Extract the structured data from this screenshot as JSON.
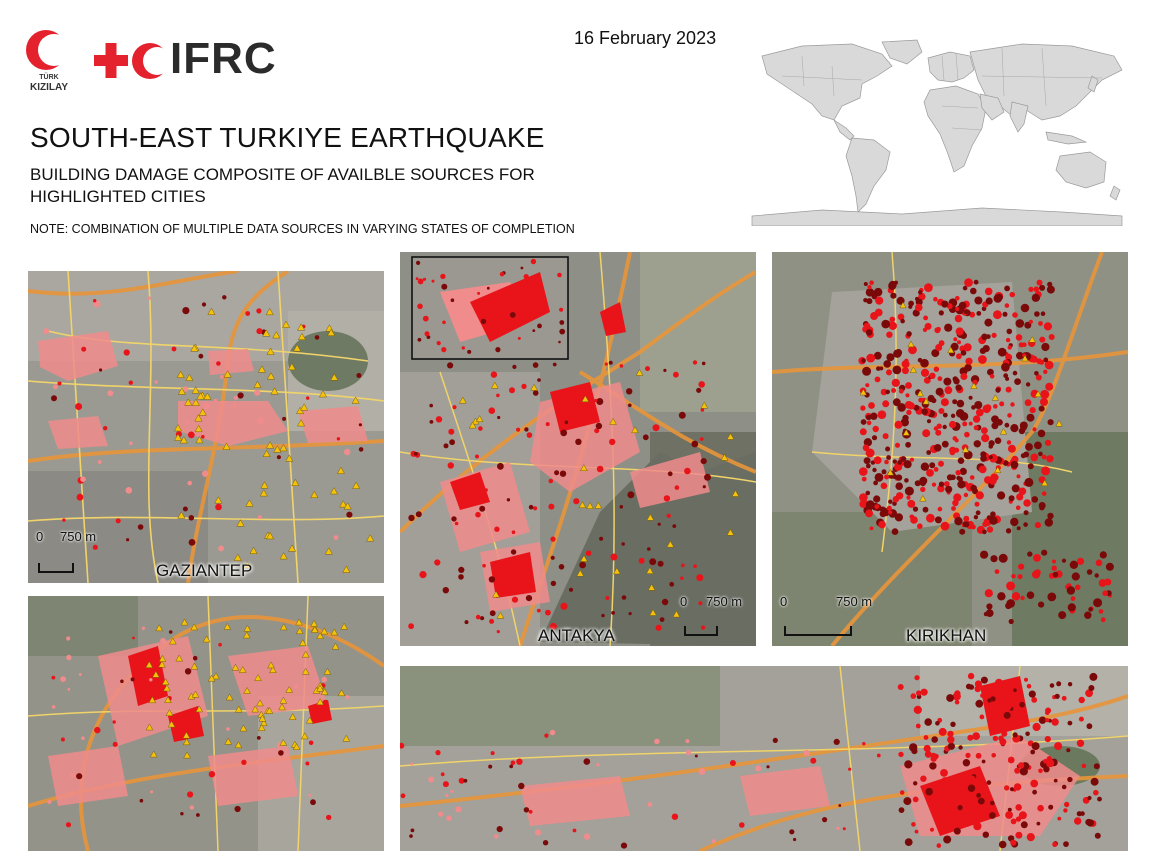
{
  "header": {
    "kizilay_line1": "TÜRK",
    "kizilay_line2": "KIZILAY",
    "ifrc_text": "IFRC",
    "date": "16 February 2023",
    "title": "SOUTH-EAST TURKIYE EARTHQUAKE",
    "subtitle": "BUILDING DAMAGE COMPOSITE OF AVAILBLE SOURCES FOR HIGHLIGHTED CITIES",
    "note": "NOTE: COMBINATION OF MULTIPLE DATA SOURCES IN VARYING STATES OF COMPLETION"
  },
  "colors": {
    "brand_red": "#e4222e",
    "imagery": "#8d8d86",
    "road_major": "#e8953a",
    "road_minor": "#f0d36a",
    "damage_pink": "#f08c8c",
    "damage_red": "#e8141a",
    "damage_dark": "#7a0a0a",
    "triangle_yellow": "#f4c20d",
    "land_world": "#d9d9d9"
  },
  "panels": {
    "gaziantep": {
      "label": "GAZIANTEP",
      "scale_zero": "0",
      "scale_text": "750 m"
    },
    "antakya": {
      "label": "ANTAKYA",
      "scale_zero": "0",
      "scale_text": "750 m"
    },
    "kirikhan": {
      "label": "KIRIKHAN",
      "scale_zero": "0",
      "scale_text": "750 m"
    }
  }
}
